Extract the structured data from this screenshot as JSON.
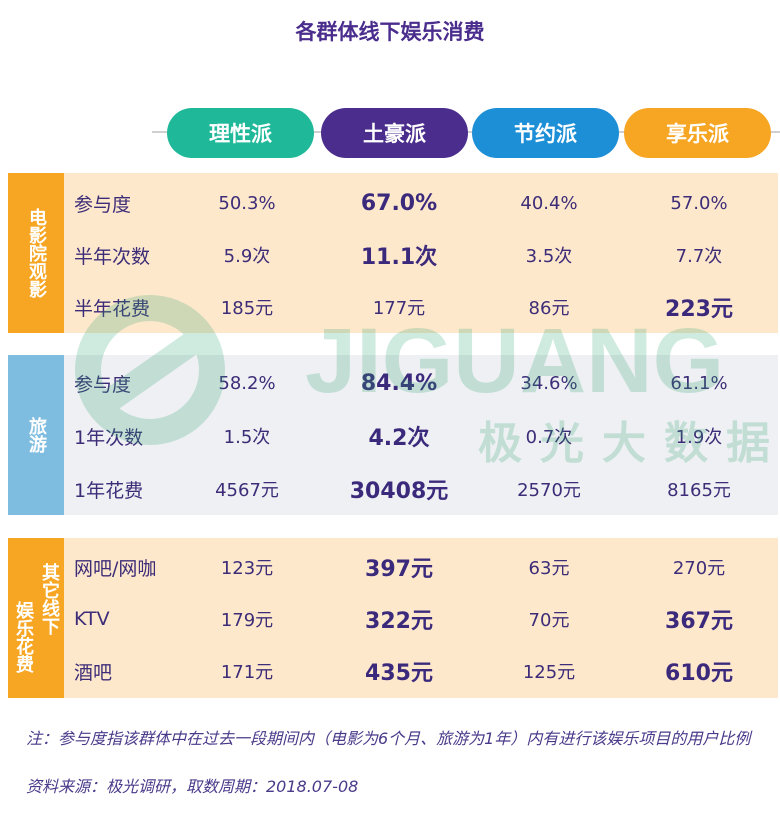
{
  "title": "各群体线下娱乐消费",
  "groups": [
    {
      "label": "理性派",
      "color": "#1fb99a"
    },
    {
      "label": "土豪派",
      "color": "#4a2d8c"
    },
    {
      "label": "节约派",
      "color": "#1d8fd6"
    },
    {
      "label": "享乐派",
      "color": "#f6a623"
    }
  ],
  "sections": [
    {
      "name": "电影院观影",
      "sidebar_color": "#f6a623",
      "body_color": "#fde8cc",
      "rows": [
        {
          "label": "参与度",
          "values": [
            "50.3%",
            "67.0%",
            "40.4%",
            "57.0%"
          ],
          "bold": [
            false,
            true,
            false,
            false
          ]
        },
        {
          "label": "半年次数",
          "values": [
            "5.9次",
            "11.1次",
            "3.5次",
            "7.7次"
          ],
          "bold": [
            false,
            true,
            false,
            false
          ]
        },
        {
          "label": "半年花费",
          "values": [
            "185元",
            "177元",
            "86元",
            "223元"
          ],
          "bold": [
            false,
            false,
            false,
            true
          ]
        }
      ]
    },
    {
      "name": "旅游",
      "sidebar_color": "#7fbde0",
      "body_color": "#eef0f3",
      "rows": [
        {
          "label": "参与度",
          "values": [
            "58.2%",
            "84.4%",
            "34.6%",
            "61.1%"
          ],
          "bold": [
            false,
            true,
            false,
            false
          ]
        },
        {
          "label": "1年次数",
          "values": [
            "1.5次",
            "4.2次",
            "0.7次",
            "1.9次"
          ],
          "bold": [
            false,
            true,
            false,
            false
          ]
        },
        {
          "label": "1年花费",
          "values": [
            "4567元",
            "30408元",
            "2570元",
            "8165元"
          ],
          "bold": [
            false,
            true,
            false,
            false
          ]
        }
      ]
    },
    {
      "name_col1": "其它线下",
      "name_col2": "娱乐花费",
      "sidebar_color": "#f6a623",
      "body_color": "#fde8cc",
      "rows": [
        {
          "label": "网吧/网咖",
          "values": [
            "123元",
            "397元",
            "63元",
            "270元"
          ],
          "bold": [
            false,
            true,
            false,
            false
          ]
        },
        {
          "label": "KTV",
          "values": [
            "179元",
            "322元",
            "70元",
            "367元"
          ],
          "bold": [
            false,
            true,
            false,
            true
          ]
        },
        {
          "label": "酒吧",
          "values": [
            "171元",
            "435元",
            "125元",
            "610元"
          ],
          "bold": [
            false,
            true,
            false,
            true
          ]
        }
      ]
    }
  ],
  "watermark": {
    "brand": "JIGUANG",
    "sub": "极光大数据",
    "color": "#2aa36b"
  },
  "notes": {
    "line1": "注：参与度指该群体中在过去一段期间内（电影为6个月、旅游为1年）内有进行该娱乐项目的用户比例",
    "line2": "资料来源：极光调研，取数周期：2018.07-08"
  }
}
